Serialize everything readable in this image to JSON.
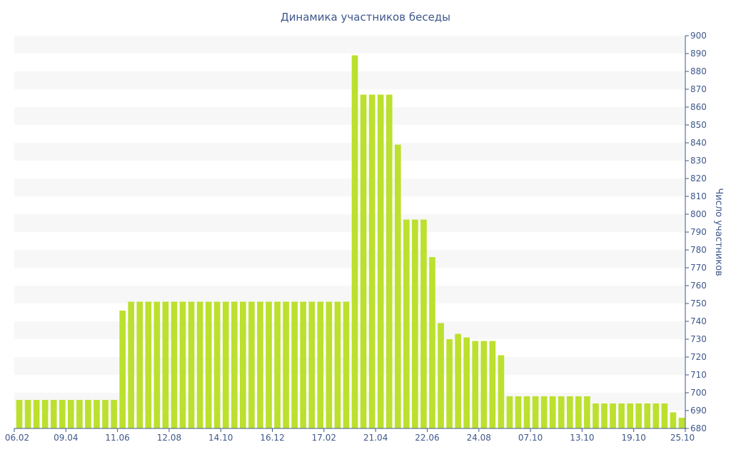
{
  "chart_data": {
    "type": "bar",
    "title": "Динамика участников беседы",
    "ylabel": "Число участников",
    "xlabel": "",
    "ylim": [
      680,
      900
    ],
    "ystep": 10,
    "grid": "alternating-bands",
    "y_axis_side": "right",
    "tick_labels": [
      "06.02",
      "09.04",
      "11.06",
      "12.08",
      "14.10",
      "16.12",
      "17.02",
      "21.04",
      "22.06",
      "24.08",
      "07.10",
      "13.10",
      "19.10",
      "25.10"
    ],
    "tick_positions": [
      0,
      6,
      12,
      18,
      24,
      30,
      36,
      42,
      48,
      54,
      60,
      66,
      72,
      78
    ],
    "values": [
      696,
      696,
      696,
      696,
      696,
      696,
      696,
      696,
      696,
      696,
      696,
      696,
      746,
      751,
      751,
      751,
      751,
      751,
      751,
      751,
      751,
      751,
      751,
      751,
      751,
      751,
      751,
      751,
      751,
      751,
      751,
      751,
      751,
      751,
      751,
      751,
      751,
      751,
      751,
      889,
      867,
      867,
      867,
      867,
      839,
      797,
      797,
      797,
      776,
      739,
      730,
      733,
      731,
      729,
      729,
      729,
      721,
      698,
      698,
      698,
      698,
      698,
      698,
      698,
      698,
      698,
      698,
      694,
      694,
      694,
      694,
      694,
      694,
      694,
      694,
      694,
      689,
      686
    ]
  },
  "colors": {
    "bar": "#bce02e",
    "band": "#f7f7f7",
    "text": "#3e578a",
    "axis": "#3e578a"
  }
}
